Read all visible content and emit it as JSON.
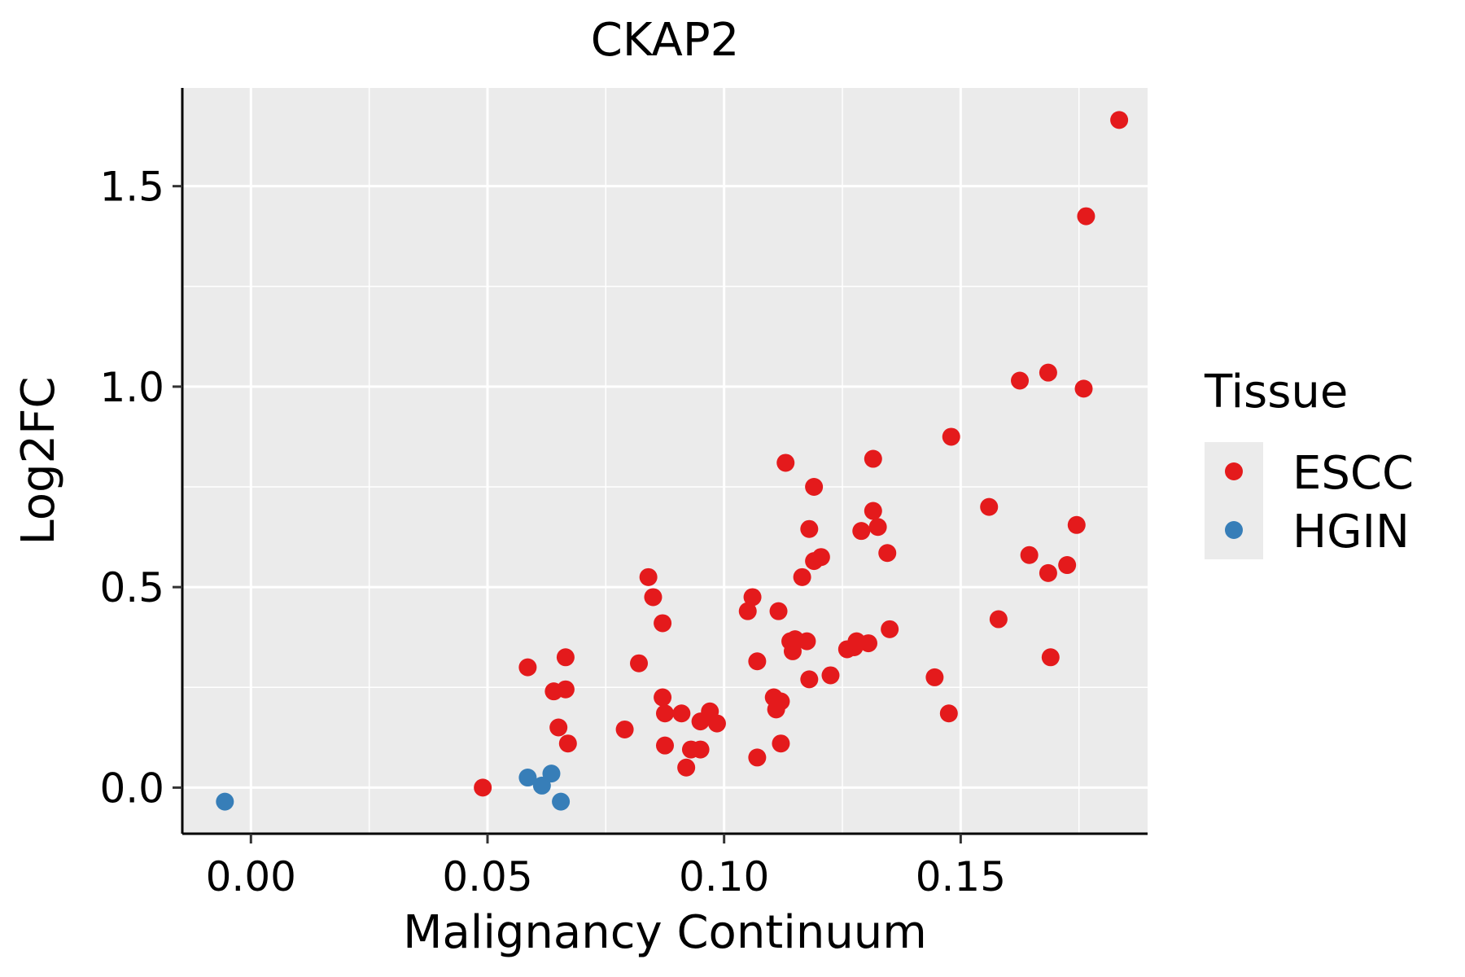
{
  "chart_data": {
    "type": "scatter",
    "title": "CKAP2",
    "xlabel": "Malignancy Continuum",
    "ylabel": "Log2FC",
    "xlim": [
      -0.0145,
      0.1895
    ],
    "ylim": [
      -0.115,
      1.745
    ],
    "x_ticks": [
      0.0,
      0.05,
      0.1,
      0.15
    ],
    "x_tick_labels": [
      "0.00",
      "0.05",
      "0.10",
      "0.15"
    ],
    "y_ticks": [
      0.0,
      0.5,
      1.0,
      1.5
    ],
    "y_tick_labels": [
      "0.0",
      "0.5",
      "1.0",
      "1.5"
    ],
    "grid": true,
    "legend": {
      "title": "Tissue",
      "position": "right",
      "entries": [
        {
          "label": "ESCC",
          "color": "#e41a1c"
        },
        {
          "label": "HGIN",
          "color": "#377eb8"
        }
      ]
    },
    "series": [
      {
        "name": "ESCC",
        "color": "#e41a1c",
        "points": [
          [
            0.049,
            0.0
          ],
          [
            0.0585,
            0.3
          ],
          [
            0.064,
            0.24
          ],
          [
            0.065,
            0.15
          ],
          [
            0.0665,
            0.325
          ],
          [
            0.0665,
            0.245
          ],
          [
            0.067,
            0.11
          ],
          [
            0.079,
            0.145
          ],
          [
            0.082,
            0.31
          ],
          [
            0.084,
            0.525
          ],
          [
            0.085,
            0.475
          ],
          [
            0.087,
            0.41
          ],
          [
            0.087,
            0.225
          ],
          [
            0.0875,
            0.185
          ],
          [
            0.0875,
            0.105
          ],
          [
            0.091,
            0.185
          ],
          [
            0.092,
            0.05
          ],
          [
            0.093,
            0.095
          ],
          [
            0.095,
            0.095
          ],
          [
            0.095,
            0.165
          ],
          [
            0.097,
            0.19
          ],
          [
            0.0985,
            0.16
          ],
          [
            0.105,
            0.44
          ],
          [
            0.106,
            0.475
          ],
          [
            0.107,
            0.315
          ],
          [
            0.107,
            0.075
          ],
          [
            0.1105,
            0.225
          ],
          [
            0.111,
            0.195
          ],
          [
            0.1115,
            0.44
          ],
          [
            0.112,
            0.215
          ],
          [
            0.112,
            0.11
          ],
          [
            0.113,
            0.81
          ],
          [
            0.114,
            0.365
          ],
          [
            0.1145,
            0.34
          ],
          [
            0.115,
            0.37
          ],
          [
            0.1165,
            0.525
          ],
          [
            0.1175,
            0.365
          ],
          [
            0.118,
            0.645
          ],
          [
            0.118,
            0.27
          ],
          [
            0.119,
            0.565
          ],
          [
            0.119,
            0.75
          ],
          [
            0.1205,
            0.575
          ],
          [
            0.1225,
            0.28
          ],
          [
            0.126,
            0.345
          ],
          [
            0.1275,
            0.35
          ],
          [
            0.128,
            0.365
          ],
          [
            0.129,
            0.64
          ],
          [
            0.1305,
            0.36
          ],
          [
            0.1315,
            0.69
          ],
          [
            0.1315,
            0.82
          ],
          [
            0.1325,
            0.65
          ],
          [
            0.1345,
            0.585
          ],
          [
            0.135,
            0.395
          ],
          [
            0.1445,
            0.275
          ],
          [
            0.1475,
            0.185
          ],
          [
            0.148,
            0.875
          ],
          [
            0.156,
            0.7
          ],
          [
            0.158,
            0.42
          ],
          [
            0.1625,
            1.015
          ],
          [
            0.1645,
            0.58
          ],
          [
            0.1685,
            1.035
          ],
          [
            0.1685,
            0.535
          ],
          [
            0.169,
            0.325
          ],
          [
            0.1725,
            0.555
          ],
          [
            0.1745,
            0.655
          ],
          [
            0.176,
            0.995
          ],
          [
            0.1765,
            1.425
          ],
          [
            0.1835,
            1.665
          ]
        ]
      },
      {
        "name": "HGIN",
        "color": "#377eb8",
        "points": [
          [
            -0.0055,
            -0.035
          ],
          [
            0.0585,
            0.025
          ],
          [
            0.0615,
            0.005
          ],
          [
            0.0635,
            0.035
          ],
          [
            0.0655,
            -0.035
          ]
        ]
      }
    ]
  }
}
